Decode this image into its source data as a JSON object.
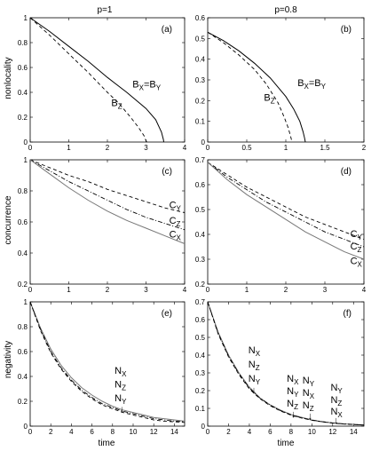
{
  "columns": [
    "p=1",
    "p=0.8"
  ],
  "ylabels": [
    "nonlocality",
    "concurrence",
    "negativity"
  ],
  "xlabel_bottom": "time",
  "chart_data": [
    {
      "type": "line",
      "panel": "(a)",
      "xlim": [
        0,
        4
      ],
      "ylim": [
        0,
        1
      ],
      "xticks": [
        "0",
        "1",
        "2",
        "3",
        "4"
      ],
      "xtick_values": [
        0,
        1,
        2,
        3,
        4
      ],
      "yticks": [
        "0",
        "0.2",
        "0.4",
        "0.6",
        "0.8",
        "1"
      ],
      "ytick_values": [
        0,
        0.2,
        0.4,
        0.6,
        0.8,
        1
      ],
      "series": [
        {
          "style": "solid",
          "x": [
            0,
            0.5,
            1,
            1.5,
            2,
            2.5,
            3,
            3.25,
            3.4,
            3.45,
            3.46
          ],
          "y": [
            1,
            0.89,
            0.77,
            0.65,
            0.52,
            0.4,
            0.27,
            0.18,
            0.08,
            0.02,
            0
          ]
        },
        {
          "style": "dashed",
          "x": [
            0,
            0.5,
            1,
            1.5,
            2,
            2.3,
            2.6,
            2.8,
            2.95,
            3.0,
            3.02
          ],
          "y": [
            1,
            0.86,
            0.71,
            0.56,
            0.4,
            0.31,
            0.2,
            0.12,
            0.05,
            0.01,
            0
          ]
        }
      ],
      "annotations": [
        {
          "text": "B",
          "sub": "X",
          "text2": "=B",
          "sub2": "Y",
          "x": 2.65,
          "y": 0.44
        },
        {
          "text": "B",
          "sub": "Z",
          "x": 2.1,
          "y": 0.29
        }
      ]
    },
    {
      "type": "line",
      "panel": "(b)",
      "xlim": [
        0,
        2
      ],
      "ylim": [
        0,
        0.6
      ],
      "xticks": [
        "0",
        "0.5",
        "1",
        "1.5",
        "2"
      ],
      "xtick_values": [
        0,
        0.5,
        1,
        1.5,
        2
      ],
      "yticks": [
        "0",
        "0.1",
        "0.2",
        "0.3",
        "0.4",
        "0.5",
        "0.6"
      ],
      "ytick_values": [
        0,
        0.1,
        0.2,
        0.3,
        0.4,
        0.5,
        0.6
      ],
      "series": [
        {
          "style": "solid",
          "x": [
            0,
            0.2,
            0.4,
            0.6,
            0.8,
            1.0,
            1.1,
            1.18,
            1.22,
            1.24,
            1.25
          ],
          "y": [
            0.53,
            0.49,
            0.44,
            0.38,
            0.31,
            0.22,
            0.16,
            0.1,
            0.05,
            0.02,
            0
          ]
        },
        {
          "style": "dashed",
          "x": [
            0,
            0.2,
            0.4,
            0.6,
            0.75,
            0.9,
            0.98,
            1.03,
            1.06,
            1.08
          ],
          "y": [
            0.53,
            0.48,
            0.42,
            0.35,
            0.28,
            0.19,
            0.12,
            0.07,
            0.03,
            0
          ]
        }
      ],
      "annotations": [
        {
          "text": "B",
          "sub": "X",
          "text2": "=B",
          "sub2": "Y",
          "x": 1.15,
          "y": 0.27
        },
        {
          "text": "B",
          "sub": "Z",
          "x": 0.72,
          "y": 0.2
        }
      ]
    },
    {
      "type": "line",
      "panel": "(c)",
      "xlim": [
        0,
        4
      ],
      "ylim": [
        0.2,
        1
      ],
      "xticks": [
        "0",
        "1",
        "2",
        "3",
        "4"
      ],
      "xtick_values": [
        0,
        1,
        2,
        3,
        4
      ],
      "yticks": [
        "0.2",
        "0.4",
        "0.6",
        "0.8",
        "1"
      ],
      "ytick_values": [
        0.2,
        0.4,
        0.6,
        0.8,
        1
      ],
      "series": [
        {
          "name": "C_Y",
          "style": "dashed",
          "x": [
            0,
            0.5,
            1,
            1.5,
            2,
            2.5,
            3,
            3.5,
            4
          ],
          "y": [
            1,
            0.95,
            0.9,
            0.86,
            0.81,
            0.77,
            0.73,
            0.69,
            0.66
          ]
        },
        {
          "name": "C_Z",
          "style": "dashdot",
          "x": [
            0,
            0.5,
            1,
            1.5,
            2,
            2.5,
            3,
            3.5,
            4
          ],
          "y": [
            1,
            0.93,
            0.86,
            0.8,
            0.74,
            0.68,
            0.63,
            0.59,
            0.55
          ]
        },
        {
          "name": "C_X",
          "style": "solid-gray",
          "x": [
            0,
            0.5,
            1,
            1.5,
            2,
            2.5,
            3,
            3.5,
            4
          ],
          "y": [
            1,
            0.91,
            0.82,
            0.74,
            0.67,
            0.61,
            0.56,
            0.51,
            0.46
          ]
        }
      ],
      "annotations": [
        {
          "text": "C",
          "sub": "Y",
          "x": 3.6,
          "y": 0.69
        },
        {
          "text": "C",
          "sub": "Z",
          "x": 3.6,
          "y": 0.59
        },
        {
          "text": "C",
          "sub": "X",
          "x": 3.6,
          "y": 0.5
        }
      ]
    },
    {
      "type": "line",
      "panel": "(d)",
      "xlim": [
        0,
        4
      ],
      "ylim": [
        0.2,
        0.7
      ],
      "xticks": [
        "0",
        "1",
        "2",
        "3",
        "4"
      ],
      "xtick_values": [
        0,
        1,
        2,
        3,
        4
      ],
      "yticks": [
        "0.2",
        "0.3",
        "0.4",
        "0.5",
        "0.6",
        "0.7"
      ],
      "ytick_values": [
        0.2,
        0.3,
        0.4,
        0.5,
        0.6,
        0.7
      ],
      "series": [
        {
          "name": "C_Y",
          "style": "dashed",
          "x": [
            0,
            0.5,
            1,
            1.5,
            2,
            2.5,
            3,
            3.5,
            4
          ],
          "y": [
            0.69,
            0.64,
            0.59,
            0.55,
            0.51,
            0.47,
            0.44,
            0.41,
            0.38
          ]
        },
        {
          "name": "C_Z",
          "style": "dashdot",
          "x": [
            0,
            0.5,
            1,
            1.5,
            2,
            2.5,
            3,
            3.5,
            4
          ],
          "y": [
            0.69,
            0.63,
            0.58,
            0.53,
            0.49,
            0.45,
            0.41,
            0.38,
            0.35
          ]
        },
        {
          "name": "C_X",
          "style": "solid-gray",
          "x": [
            0,
            0.5,
            1,
            1.5,
            2,
            2.5,
            3,
            3.5,
            4
          ],
          "y": [
            0.69,
            0.62,
            0.56,
            0.51,
            0.46,
            0.41,
            0.37,
            0.33,
            0.3
          ]
        }
      ],
      "annotations": [
        {
          "text": "C",
          "sub": "Y",
          "x": 3.65,
          "y": 0.39
        },
        {
          "text": "C",
          "sub": "Z",
          "x": 3.65,
          "y": 0.34
        },
        {
          "text": "C",
          "sub": "X",
          "x": 3.65,
          "y": 0.28
        }
      ]
    },
    {
      "type": "line",
      "panel": "(e)",
      "xlim": [
        0,
        15
      ],
      "ylim": [
        0,
        1
      ],
      "xticks": [
        "0",
        "2",
        "4",
        "6",
        "8",
        "10",
        "12",
        "14"
      ],
      "xtick_values": [
        0,
        2,
        4,
        6,
        8,
        10,
        12,
        14
      ],
      "yticks": [
        "0",
        "0.2",
        "0.4",
        "0.6",
        "0.8",
        "1"
      ],
      "ytick_values": [
        0,
        0.2,
        0.4,
        0.6,
        0.8,
        1
      ],
      "series": [
        {
          "style": "solid-gray",
          "x": [
            0,
            1,
            2,
            3,
            4,
            5,
            6,
            7,
            8,
            9,
            10,
            11,
            12,
            13,
            14,
            15
          ],
          "y": [
            1,
            0.79,
            0.62,
            0.49,
            0.39,
            0.31,
            0.25,
            0.2,
            0.16,
            0.13,
            0.11,
            0.09,
            0.07,
            0.06,
            0.05,
            0.04
          ]
        },
        {
          "style": "dashed",
          "x": [
            0,
            1,
            2,
            3,
            4,
            5,
            6,
            7,
            8,
            9,
            10,
            11,
            12,
            13,
            14,
            15
          ],
          "y": [
            1,
            0.77,
            0.59,
            0.46,
            0.36,
            0.28,
            0.22,
            0.17,
            0.14,
            0.11,
            0.09,
            0.07,
            0.05,
            0.04,
            0.035,
            0.03
          ]
        },
        {
          "style": "dashdot",
          "x": [
            0,
            1,
            2,
            3,
            4,
            5,
            6,
            7,
            8,
            9,
            10,
            11,
            12,
            13,
            14,
            15
          ],
          "y": [
            1,
            0.78,
            0.6,
            0.47,
            0.37,
            0.29,
            0.23,
            0.18,
            0.15,
            0.12,
            0.1,
            0.08,
            0.06,
            0.05,
            0.04,
            0.035
          ]
        }
      ],
      "annotations": [
        {
          "text": "N",
          "sub": "X",
          "x": 8.2,
          "y": 0.42
        },
        {
          "text": "N",
          "sub": "Z",
          "x": 8.2,
          "y": 0.31
        },
        {
          "text": "N",
          "sub": "Y",
          "x": 8.2,
          "y": 0.2
        },
        {
          "text": "↓",
          "x": 8.7,
          "y": 0.11
        }
      ]
    },
    {
      "type": "line",
      "panel": "(f)",
      "xlim": [
        0,
        15
      ],
      "ylim": [
        0,
        0.7
      ],
      "xticks": [
        "0",
        "2",
        "4",
        "6",
        "8",
        "10",
        "12",
        "14"
      ],
      "xtick_values": [
        0,
        2,
        4,
        6,
        8,
        10,
        12,
        14
      ],
      "yticks": [
        "0",
        "0.1",
        "0.2",
        "0.3",
        "0.4",
        "0.5",
        "0.6",
        "0.7"
      ],
      "ytick_values": [
        0,
        0.1,
        0.2,
        0.3,
        0.4,
        0.5,
        0.6,
        0.7
      ],
      "series": [
        {
          "style": "solid-gray",
          "x": [
            0,
            1,
            2,
            3,
            4,
            5,
            6,
            7,
            8,
            9,
            10,
            11,
            12,
            13,
            14,
            15
          ],
          "y": [
            0.7,
            0.53,
            0.4,
            0.3,
            0.22,
            0.16,
            0.12,
            0.09,
            0.065,
            0.05,
            0.035,
            0.025,
            0.018,
            0.013,
            0.01,
            0.007
          ]
        },
        {
          "style": "dashed",
          "x": [
            0,
            1,
            2,
            3,
            4,
            5,
            6,
            7,
            8,
            9,
            10,
            11,
            12,
            13,
            14,
            15
          ],
          "y": [
            0.7,
            0.52,
            0.39,
            0.29,
            0.21,
            0.155,
            0.115,
            0.085,
            0.062,
            0.046,
            0.033,
            0.024,
            0.017,
            0.012,
            0.009,
            0.006
          ]
        },
        {
          "style": "dashdot",
          "x": [
            0,
            1,
            2,
            3,
            4,
            5,
            6,
            7,
            8,
            9,
            10,
            11,
            12,
            13,
            14,
            15
          ],
          "y": [
            0.7,
            0.525,
            0.395,
            0.295,
            0.215,
            0.158,
            0.118,
            0.087,
            0.064,
            0.047,
            0.034,
            0.025,
            0.018,
            0.013,
            0.0095,
            0.0065
          ]
        }
      ],
      "annotations": [
        {
          "text": "N",
          "sub": "X",
          "x": 3.9,
          "y": 0.41
        },
        {
          "text": "N",
          "sub": "Z",
          "x": 3.9,
          "y": 0.33
        },
        {
          "text": "N",
          "sub": "Y",
          "x": 3.9,
          "y": 0.25
        },
        {
          "text": "↓",
          "x": 4.2,
          "y": 0.185
        },
        {
          "text": "N",
          "sub": "X",
          "x": 7.6,
          "y": 0.25
        },
        {
          "text": "N",
          "sub": "Y",
          "x": 7.6,
          "y": 0.18
        },
        {
          "text": "N",
          "sub": "Z",
          "x": 7.6,
          "y": 0.11
        },
        {
          "text": "↓",
          "x": 8.0,
          "y": 0.05
        },
        {
          "text": "N",
          "sub": "Y",
          "x": 9.1,
          "y": 0.24
        },
        {
          "text": "N",
          "sub": "X",
          "x": 9.1,
          "y": 0.17
        },
        {
          "text": "N",
          "sub": "Z",
          "x": 9.1,
          "y": 0.1
        },
        {
          "text": "↓",
          "x": 9.6,
          "y": 0.04
        },
        {
          "text": "N",
          "sub": "Y",
          "x": 11.8,
          "y": 0.2
        },
        {
          "text": "N",
          "sub": "Z",
          "x": 11.8,
          "y": 0.13
        },
        {
          "text": "N",
          "sub": "X",
          "x": 11.8,
          "y": 0.065
        },
        {
          "text": "↓",
          "x": 12.1,
          "y": 0.015
        }
      ]
    }
  ]
}
